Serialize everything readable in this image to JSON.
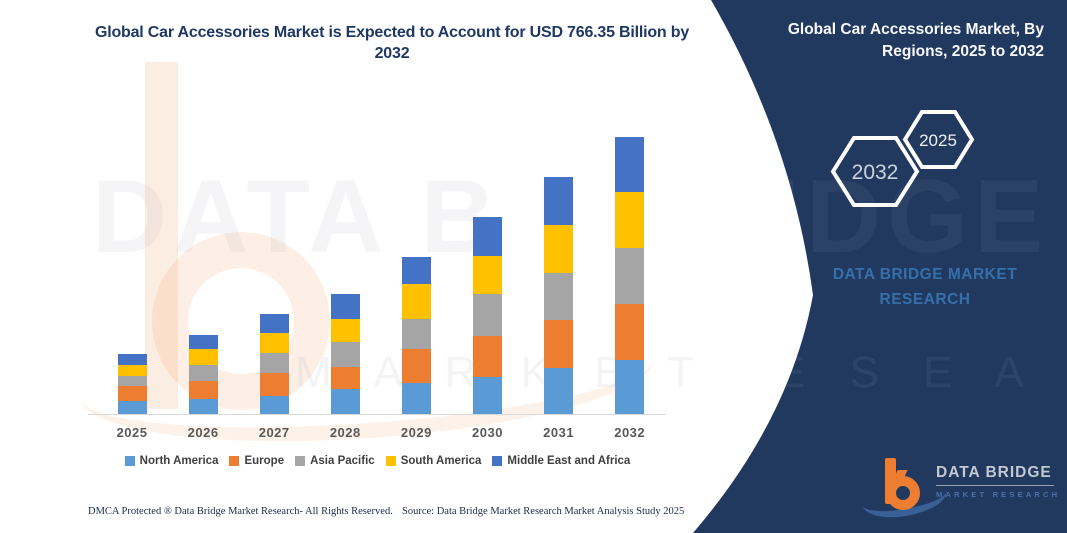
{
  "title": {
    "text": "Global Car Accessories Market is Expected to Account for USD 766.35 Billion by 2032"
  },
  "watermark": {
    "main_left": "DATA B",
    "main_right": "RIDGE",
    "sub_left": "M A R K E T",
    "sub_right": "R E S E A R C H"
  },
  "panel": {
    "bg_color": "#22395f",
    "heading": "Global Car Accessories Market, By Regions, 2025 to 2032",
    "hexagons": [
      {
        "label": "2032"
      },
      {
        "label": "2025"
      }
    ],
    "brand_text": "DATA BRIDGE MARKET RESEARCH",
    "brand_color": "#3570ad",
    "logo": {
      "name": "DATA BRIDGE",
      "sub": "MARKET RESEARCH"
    }
  },
  "footer": {
    "left": "DMCA Protected ® Data Bridge Market Research-  All Rights Reserved.",
    "source": "Source: Data Bridge Market Research  Market Analysis Study 2025"
  },
  "chart_data": {
    "type": "bar",
    "stacked": true,
    "unit": "USD Billion",
    "categories": [
      "2025",
      "2026",
      "2027",
      "2028",
      "2029",
      "2030",
      "2031",
      "2032"
    ],
    "series": [
      {
        "name": "North America",
        "color": "#5B9BD5",
        "values": [
          36,
          41,
          50,
          69,
          86,
          102,
          127,
          149
        ]
      },
      {
        "name": "Europe",
        "color": "#ED7D31",
        "values": [
          41,
          50,
          64,
          60,
          94,
          113,
          133,
          155
        ]
      },
      {
        "name": "Asia Pacific",
        "color": "#A5A5A5",
        "values": [
          28,
          44,
          55,
          69,
          83,
          116,
          130,
          155
        ]
      },
      {
        "name": "South America",
        "color": "#FFC000",
        "values": [
          30,
          44,
          55,
          64,
          97,
          105,
          133,
          155
        ]
      },
      {
        "name": "Middle East and Africa",
        "color": "#4472C4",
        "values": [
          30,
          39,
          53,
          69,
          75,
          108,
          133,
          152
        ]
      }
    ],
    "totals_estimated": [
      165,
      218,
      277,
      331,
      435,
      544,
      656,
      766.35
    ],
    "value_anchor": "2032 total = 766.35 USD Billion (values estimated from bar heights)",
    "ylim": [
      0,
      800
    ],
    "grid": false,
    "legend_position": "bottom"
  }
}
